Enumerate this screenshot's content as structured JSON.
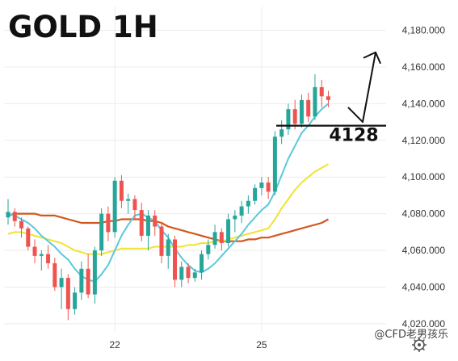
{
  "chart_data": {
    "type": "candlestick",
    "title": "GOLD 1H",
    "y_ticks": [
      "4,180.000",
      "4,160.000",
      "4,140.000",
      "4,120.000",
      "4,100.000",
      "4,080.000",
      "4,060.000",
      "4,040.000",
      "4,020.000"
    ],
    "x_ticks": [
      "22",
      "25"
    ],
    "ylim": [
      4016,
      4193
    ],
    "grid": true,
    "colors": {
      "up": "#26a69a",
      "down": "#ef5350",
      "ma_fast": "#5bc8dc",
      "ma_mid": "#f2e233",
      "ma_slow": "#d2571f"
    },
    "candles": [
      [
        4078,
        4088,
        4074,
        4081
      ],
      [
        4081,
        4083,
        4073,
        4076
      ],
      [
        4076,
        4078,
        4067,
        4072
      ],
      [
        4072,
        4073,
        4060,
        4062
      ],
      [
        4062,
        4066,
        4053,
        4057
      ],
      [
        4057,
        4060,
        4049,
        4058
      ],
      [
        4058,
        4063,
        4050,
        4053
      ],
      [
        4053,
        4056,
        4038,
        4040
      ],
      [
        4040,
        4050,
        4028,
        4045
      ],
      [
        4045,
        4047,
        4022,
        4028
      ],
      [
        4028,
        4040,
        4025,
        4037
      ],
      [
        4037,
        4054,
        4033,
        4050
      ],
      [
        4050,
        4058,
        4034,
        4036
      ],
      [
        4036,
        4062,
        4031,
        4060
      ],
      [
        4060,
        4083,
        4057,
        4080
      ],
      [
        4080,
        4084,
        4065,
        4070
      ],
      [
        4070,
        4100,
        4067,
        4098
      ],
      [
        4098,
        4101,
        4083,
        4087
      ],
      [
        4087,
        4091,
        4080,
        4088
      ],
      [
        4088,
        4090,
        4077,
        4082
      ],
      [
        4082,
        4086,
        4065,
        4068
      ],
      [
        4068,
        4082,
        4060,
        4079
      ],
      [
        4079,
        4082,
        4068,
        4073
      ],
      [
        4073,
        4075,
        4053,
        4057
      ],
      [
        4057,
        4069,
        4050,
        4066
      ],
      [
        4066,
        4068,
        4040,
        4044
      ],
      [
        4044,
        4054,
        4040,
        4051
      ],
      [
        4051,
        4053,
        4042,
        4045
      ],
      [
        4045,
        4050,
        4043,
        4048
      ],
      [
        4048,
        4060,
        4044,
        4058
      ],
      [
        4058,
        4066,
        4055,
        4063
      ],
      [
        4063,
        4074,
        4061,
        4070
      ],
      [
        4070,
        4072,
        4060,
        4064
      ],
      [
        4064,
        4080,
        4062,
        4077
      ],
      [
        4077,
        4082,
        4070,
        4079
      ],
      [
        4079,
        4087,
        4075,
        4084
      ],
      [
        4084,
        4090,
        4080,
        4087
      ],
      [
        4087,
        4096,
        4085,
        4094
      ],
      [
        4094,
        4100,
        4090,
        4097
      ],
      [
        4097,
        4100,
        4088,
        4092
      ],
      [
        4092,
        4125,
        4090,
        4122
      ],
      [
        4122,
        4131,
        4118,
        4126
      ],
      [
        4126,
        4140,
        4123,
        4137
      ],
      [
        4137,
        4142,
        4126,
        4129
      ],
      [
        4129,
        4145,
        4127,
        4142
      ],
      [
        4142,
        4146,
        4130,
        4133
      ],
      [
        4133,
        4156,
        4131,
        4149
      ],
      [
        4149,
        4153,
        4138,
        4144
      ],
      [
        4144,
        4147,
        4138,
        4142
      ]
    ],
    "ma_fast": [
      4080,
      4079,
      4077,
      4075,
      4072,
      4068,
      4065,
      4062,
      4058,
      4055,
      4050,
      4046,
      4044,
      4043,
      4047,
      4052,
      4060,
      4068,
      4074,
      4079,
      4080,
      4078,
      4076,
      4071,
      4067,
      4061,
      4056,
      4052,
      4049,
      4048,
      4050,
      4053,
      4057,
      4061,
      4065,
      4069,
      4074,
      4078,
      4082,
      4085,
      4092,
      4101,
      4110,
      4117,
      4124,
      4128,
      4133,
      4137,
      4140
    ],
    "ma_mid": [
      4069,
      4070,
      4070,
      4069,
      4068,
      4067,
      4066,
      4065,
      4064,
      4062,
      4060,
      4059,
      4058,
      4058,
      4058,
      4059,
      4060,
      4061,
      4061,
      4061,
      4061,
      4061,
      4062,
      4062,
      4062,
      4062,
      4062,
      4063,
      4063,
      4064,
      4064,
      4065,
      4065,
      4066,
      4067,
      4068,
      4069,
      4070,
      4071,
      4072,
      4077,
      4083,
      4088,
      4093,
      4097,
      4100,
      4103,
      4105,
      4107
    ],
    "ma_slow": [
      4079,
      4080,
      4080,
      4080,
      4080,
      4079,
      4079,
      4079,
      4078,
      4077,
      4076,
      4075,
      4075,
      4075,
      4075,
      4076,
      4076,
      4077,
      4077,
      4077,
      4077,
      4076,
      4076,
      4075,
      4073,
      4072,
      4071,
      4070,
      4069,
      4068,
      4067,
      4066,
      4065,
      4065,
      4065,
      4065,
      4066,
      4066,
      4067,
      4067,
      4068,
      4069,
      4070,
      4071,
      4072,
      4073,
      4074,
      4075,
      4077
    ],
    "resistance_level": {
      "value": 4128,
      "label": "4128"
    },
    "projection_path": [
      4138,
      4130,
      4168
    ]
  },
  "watermark": "@CFD老男孩乐"
}
